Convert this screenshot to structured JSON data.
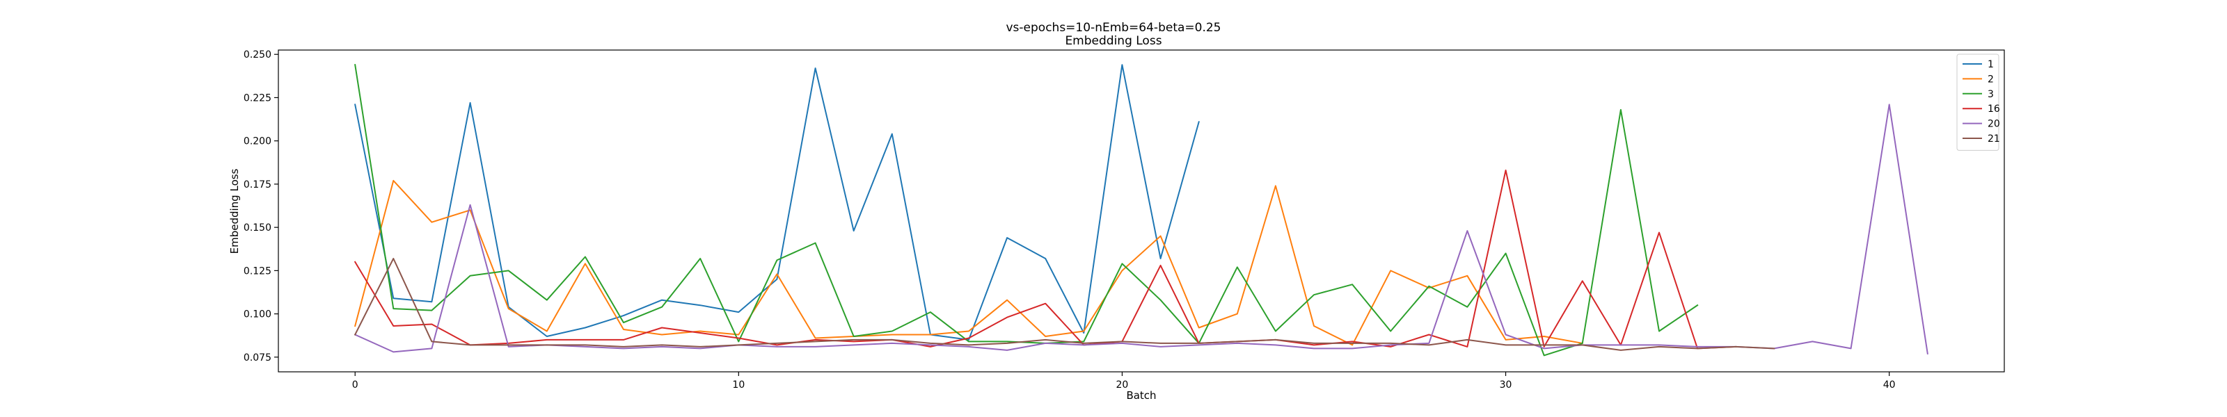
{
  "chart_data": {
    "type": "line",
    "title": "vs-epochs=10-nEmb=64-beta=0.25",
    "subtitle": "Embedding Loss",
    "xlabel": "Batch",
    "ylabel": "Embedding Loss",
    "xlim": [
      -2,
      43
    ],
    "ylim": [
      0.0665,
      0.2525
    ],
    "xticks": [
      0,
      10,
      20,
      30,
      40
    ],
    "yticks": [
      0.075,
      0.1,
      0.125,
      0.15,
      0.175,
      0.2,
      0.225,
      0.25
    ],
    "ytick_labels": [
      "0.075",
      "0.100",
      "0.125",
      "0.150",
      "0.175",
      "0.200",
      "0.225",
      "0.250"
    ],
    "grid": false,
    "legend_position": "top-right",
    "series": [
      {
        "name": "1",
        "color": "#1f77b4",
        "x": [
          0,
          1,
          2,
          3,
          4,
          5,
          6,
          7,
          8,
          9,
          10,
          11,
          12,
          13,
          14,
          15,
          16,
          17,
          18,
          19,
          20,
          21,
          22
        ],
        "values": [
          0.221,
          0.109,
          0.107,
          0.222,
          0.104,
          0.087,
          0.092,
          0.099,
          0.108,
          0.105,
          0.101,
          0.12,
          0.242,
          0.148,
          0.204,
          0.088,
          0.085,
          0.144,
          0.132,
          0.089,
          0.244,
          0.132,
          0.211
        ]
      },
      {
        "name": "2",
        "color": "#ff7f0e",
        "x": [
          0,
          1,
          2,
          3,
          4,
          5,
          6,
          7,
          8,
          9,
          10,
          11,
          12,
          13,
          14,
          15,
          16,
          17,
          18,
          19,
          20,
          21,
          22,
          23,
          24,
          25,
          26,
          27,
          28,
          29,
          30,
          31,
          32
        ],
        "values": [
          0.093,
          0.177,
          0.153,
          0.16,
          0.103,
          0.09,
          0.129,
          0.091,
          0.088,
          0.09,
          0.088,
          0.123,
          0.086,
          0.087,
          0.088,
          0.088,
          0.09,
          0.108,
          0.087,
          0.09,
          0.125,
          0.145,
          0.092,
          0.1,
          0.174,
          0.093,
          0.082,
          0.125,
          0.115,
          0.122,
          0.085,
          0.087,
          0.083
        ]
      },
      {
        "name": "3",
        "color": "#2ca02c",
        "x": [
          0,
          1,
          2,
          3,
          4,
          5,
          6,
          7,
          8,
          9,
          10,
          11,
          12,
          13,
          14,
          15,
          16,
          17,
          18,
          19,
          20,
          21,
          22,
          23,
          24,
          25,
          26,
          27,
          28,
          29,
          30,
          31,
          32,
          33,
          34,
          35
        ],
        "values": [
          0.244,
          0.103,
          0.102,
          0.122,
          0.125,
          0.108,
          0.133,
          0.095,
          0.104,
          0.132,
          0.084,
          0.131,
          0.141,
          0.087,
          0.09,
          0.101,
          0.084,
          0.084,
          0.083,
          0.084,
          0.129,
          0.108,
          0.083,
          0.127,
          0.09,
          0.111,
          0.117,
          0.09,
          0.116,
          0.104,
          0.135,
          0.076,
          0.083,
          0.218,
          0.09,
          0.105
        ]
      },
      {
        "name": "16",
        "color": "#d62728",
        "x": [
          0,
          1,
          2,
          3,
          4,
          5,
          6,
          7,
          8,
          9,
          10,
          11,
          12,
          13,
          14,
          15,
          16,
          17,
          18,
          19,
          20,
          21,
          22,
          23,
          24,
          25,
          26,
          27,
          28,
          29,
          30,
          31,
          32,
          33,
          34,
          35,
          36
        ],
        "values": [
          0.13,
          0.093,
          0.094,
          0.082,
          0.083,
          0.085,
          0.085,
          0.085,
          0.092,
          0.089,
          0.086,
          0.082,
          0.085,
          0.084,
          0.085,
          0.081,
          0.086,
          0.098,
          0.106,
          0.082,
          0.084,
          0.128,
          0.083,
          0.084,
          0.085,
          0.082,
          0.084,
          0.081,
          0.088,
          0.081,
          0.183,
          0.081,
          0.119,
          0.082,
          0.147,
          0.08,
          0.081
        ]
      },
      {
        "name": "20",
        "color": "#9467bd",
        "x": [
          0,
          1,
          2,
          3,
          4,
          5,
          6,
          7,
          8,
          9,
          10,
          11,
          12,
          13,
          14,
          15,
          16,
          17,
          18,
          19,
          20,
          21,
          22,
          23,
          24,
          25,
          26,
          27,
          28,
          29,
          30,
          31,
          32,
          33,
          34,
          35,
          36,
          37,
          38,
          39,
          40,
          41
        ],
        "values": [
          0.088,
          0.078,
          0.08,
          0.163,
          0.081,
          0.082,
          0.081,
          0.08,
          0.081,
          0.08,
          0.082,
          0.081,
          0.081,
          0.082,
          0.083,
          0.082,
          0.081,
          0.079,
          0.083,
          0.082,
          0.083,
          0.081,
          0.082,
          0.083,
          0.082,
          0.08,
          0.08,
          0.082,
          0.083,
          0.148,
          0.088,
          0.08,
          0.082,
          0.082,
          0.082,
          0.081,
          0.081,
          0.08,
          0.084,
          0.08,
          0.221,
          0.077
        ]
      },
      {
        "name": "21",
        "color": "#8c564b",
        "x": [
          0,
          1,
          2,
          3,
          4,
          5,
          6,
          7,
          8,
          9,
          10,
          11,
          12,
          13,
          14,
          15,
          16,
          17,
          18,
          19,
          20,
          21,
          22,
          23,
          24,
          25,
          26,
          27,
          28,
          29,
          30,
          31,
          32,
          33,
          34,
          35,
          36,
          37
        ],
        "values": [
          0.088,
          0.132,
          0.084,
          0.082,
          0.082,
          0.082,
          0.082,
          0.081,
          0.082,
          0.081,
          0.082,
          0.083,
          0.084,
          0.085,
          0.085,
          0.083,
          0.082,
          0.083,
          0.085,
          0.083,
          0.084,
          0.083,
          0.083,
          0.084,
          0.085,
          0.083,
          0.083,
          0.083,
          0.082,
          0.085,
          0.082,
          0.082,
          0.082,
          0.079,
          0.081,
          0.08,
          0.081,
          0.08
        ]
      }
    ]
  }
}
